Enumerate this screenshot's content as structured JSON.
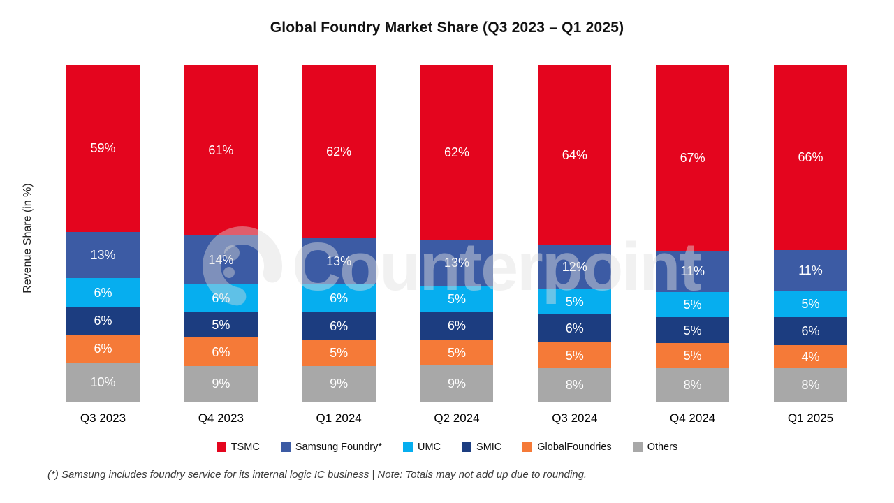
{
  "title": "Global Foundry Market Share (Q3 2023 – Q1 2025)",
  "ylabel": "Revenue Share (in %)",
  "watermark": "Counterpoint",
  "footnote": "(*) Samsung includes foundry service for its internal logic IC business | Note: Totals may not add up due to rounding.",
  "chart_data": {
    "type": "bar",
    "stacked": true,
    "percent_stacked": true,
    "unit": "%",
    "title": "Global Foundry Market Share (Q3 2023 – Q1 2025)",
    "xlabel": "",
    "ylabel": "Revenue Share (in %)",
    "ylim": [
      0,
      100
    ],
    "grid": false,
    "legend_position": "bottom",
    "categories": [
      "Q3 2023",
      "Q4 2023",
      "Q1 2024",
      "Q2 2024",
      "Q3 2024",
      "Q4 2024",
      "Q1 2025"
    ],
    "series": [
      {
        "name": "TSMC",
        "color": "#e4051e",
        "values": [
          59,
          61,
          62,
          62,
          64,
          67,
          66
        ]
      },
      {
        "name": "Samsung Foundry*",
        "color": "#3c5ba4",
        "values": [
          13,
          14,
          13,
          13,
          12,
          11,
          11
        ]
      },
      {
        "name": "UMC",
        "color": "#06aeef",
        "values": [
          6,
          6,
          6,
          5,
          5,
          5,
          5
        ]
      },
      {
        "name": "SMIC",
        "color": "#1c3d80",
        "values": [
          6,
          5,
          6,
          6,
          6,
          5,
          6
        ]
      },
      {
        "name": "GlobalFoundries",
        "color": "#f57a38",
        "values": [
          6,
          6,
          5,
          5,
          5,
          5,
          4
        ]
      },
      {
        "name": "Others",
        "color": "#a8a8a8",
        "values": [
          10,
          9,
          9,
          9,
          8,
          8,
          8
        ]
      }
    ]
  },
  "colors": {
    "tsmc": "#e4051e",
    "samsung_foundry": "#3c5ba4",
    "umc": "#06aeef",
    "smic": "#1c3d80",
    "globalfoundries": "#f57a38",
    "others": "#a8a8a8",
    "axis_line": "#d9d9d9",
    "watermark": "#f0f0f0"
  }
}
